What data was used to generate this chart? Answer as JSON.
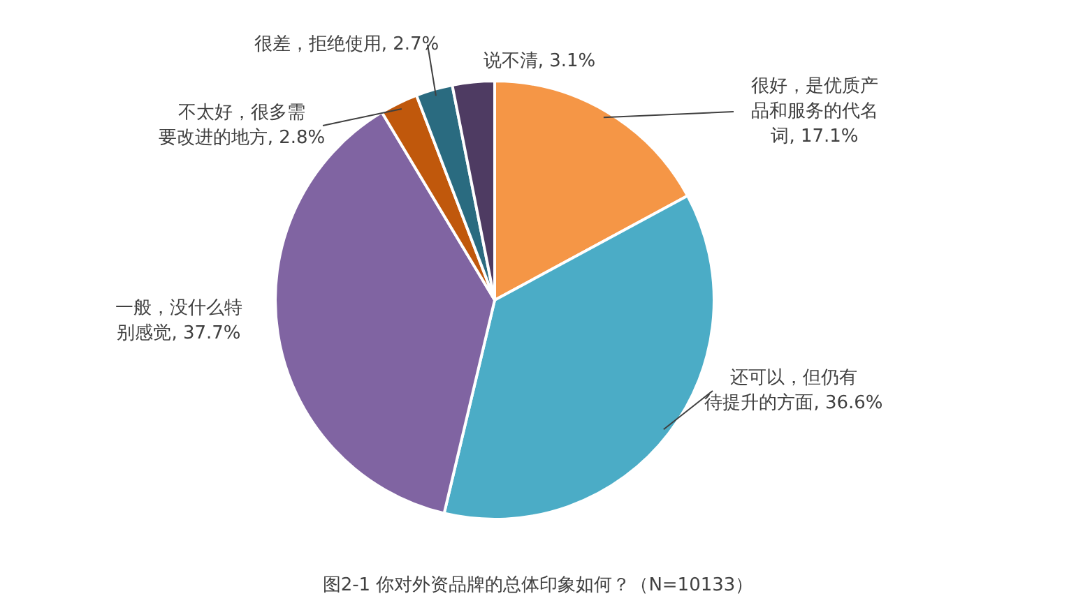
{
  "chart_data": {
    "type": "pie",
    "categories": [
      "很好，是优质产品和服务的代名词",
      "还可以，但仍有待提升的方面",
      "一般，没什么特别感觉",
      "不太好，很多需要改进的地方",
      "很差，拒绝使用",
      "说不清"
    ],
    "values": [
      17.1,
      36.6,
      37.7,
      2.8,
      2.7,
      3.1
    ],
    "value_labels": [
      "17.1%",
      "36.6%",
      "37.7%",
      "2.8%",
      "2.7%",
      "3.1%"
    ],
    "colors": [
      "#f59646",
      "#4bacc6",
      "#8064a2",
      "#c0580c",
      "#2a6b80",
      "#4e3b62"
    ],
    "annotations": [
      "图2-1 你对外资品牌的总体印象如何？（N=10133）"
    ]
  }
}
